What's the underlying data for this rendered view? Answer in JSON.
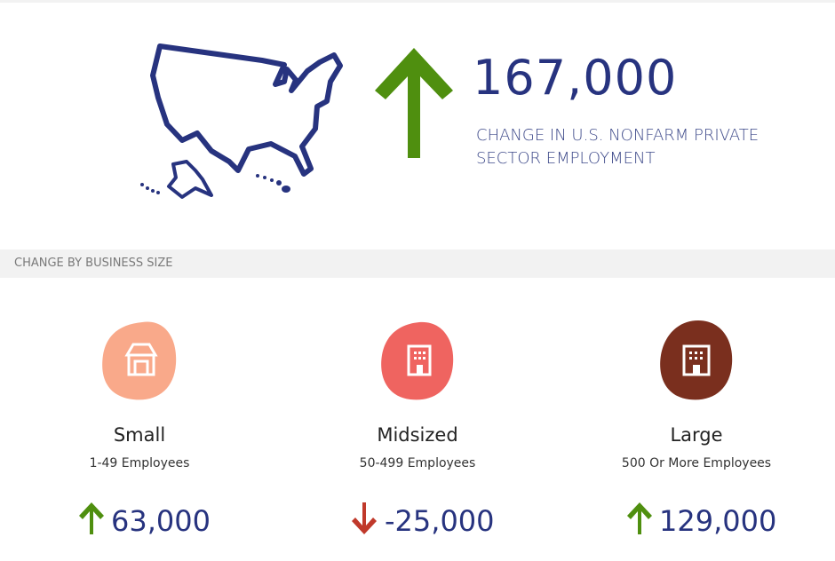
{
  "headline": {
    "value": "167,000",
    "label": "CHANGE IN U.S. NONFARM PRIVATE SECTOR EMPLOYMENT"
  },
  "section_title": "CHANGE BY BUSINESS SIZE",
  "sizes": [
    {
      "name": "Small",
      "range": "1-49 Employees",
      "change": "63,000"
    },
    {
      "name": "Midsized",
      "range": "50-499 Employees",
      "change": "-25,000"
    },
    {
      "name": "Large",
      "range": "500 Or More Employees",
      "change": "129,000"
    }
  ]
}
